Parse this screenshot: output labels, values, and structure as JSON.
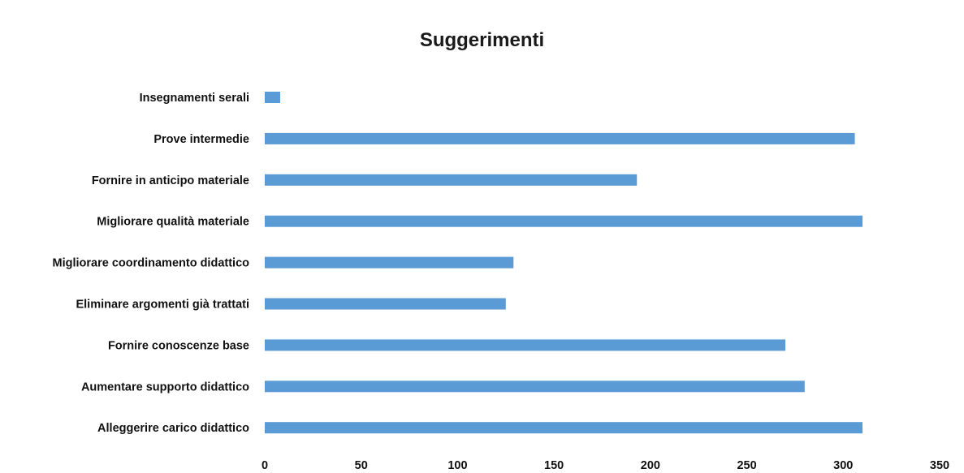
{
  "chart_data": {
    "type": "bar",
    "orientation": "horizontal",
    "title": "Suggerimenti",
    "categories": [
      "Insegnamenti serali",
      "Prove intermedie",
      "Fornire in anticipo materiale",
      "Migliorare qualità materiale",
      "Migliorare coordinamento didattico",
      "Eliminare argomenti già trattati",
      "Fornire conoscenze base",
      "Aumentare supporto didattico",
      "Alleggerire carico didattico"
    ],
    "values": [
      8,
      306,
      193,
      310,
      129,
      125,
      270,
      280,
      310
    ],
    "xlim": [
      0,
      350
    ],
    "xticks": [
      "0",
      "50",
      "100",
      "150",
      "200",
      "250",
      "300",
      "350"
    ],
    "tick_values": [
      0,
      50,
      100,
      150,
      200,
      250,
      300,
      350
    ],
    "bar_color": "#5b9bd5",
    "grid": false,
    "legend": "none"
  }
}
